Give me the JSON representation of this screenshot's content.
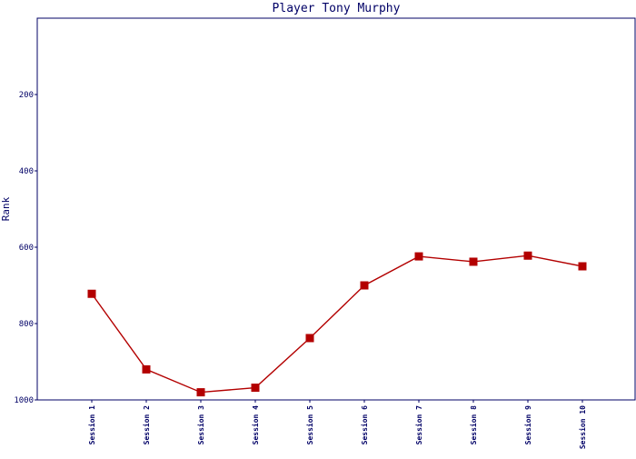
{
  "chart_data": {
    "type": "line",
    "title": "Player Tony Murphy",
    "xlabel": "",
    "ylabel": "Rank",
    "y_inverted": true,
    "ylim": [
      0,
      1000
    ],
    "yticks": [
      200,
      400,
      600,
      800,
      1000
    ],
    "categories": [
      "Session 1",
      "Session 2",
      "Session 3",
      "Session 4",
      "Session 5",
      "Session 6",
      "Session 7",
      "Session 8",
      "Session 9",
      "Session 10"
    ],
    "series": [
      {
        "values": [
          722,
          920,
          980,
          968,
          838,
          700,
          624,
          638,
          622,
          650
        ],
        "color": "#b30000"
      }
    ],
    "grid": false,
    "legend": "none",
    "axis_color": "#000066",
    "line_color": "#b30000"
  }
}
